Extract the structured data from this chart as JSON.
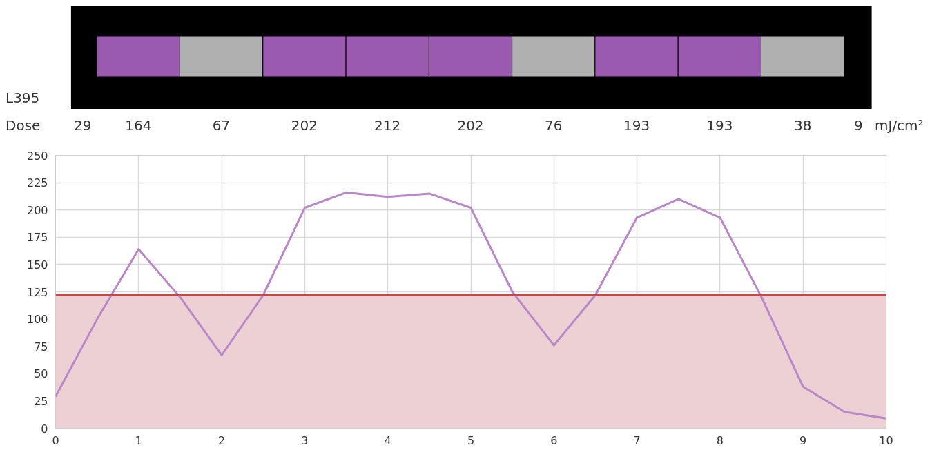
{
  "chart_data": {
    "type": "line",
    "x": [
      0,
      0.5,
      1,
      1.5,
      2,
      2.5,
      3,
      3.5,
      4,
      4.5,
      5,
      5.5,
      6,
      6.5,
      7,
      7.5,
      8,
      8.5,
      9,
      9.5,
      10
    ],
    "series": [
      {
        "color": "#b987c8",
        "values": [
          29,
          100,
          164,
          120,
          67,
          122,
          202,
          216,
          212,
          215,
          202,
          125,
          76,
          122,
          193,
          210,
          193,
          120,
          38,
          15,
          9
        ]
      }
    ],
    "annotations": [
      "L395",
      "Dose",
      "29",
      "164",
      "67",
      "202",
      "212",
      "202",
      "76",
      "193",
      "193",
      "38",
      "9",
      "mJ/cm²"
    ],
    "xlim": [
      0,
      10
    ],
    "xticks": [
      0,
      1,
      2,
      3,
      4,
      5,
      6,
      7,
      8,
      9,
      10
    ],
    "ylim": [
      0,
      250
    ],
    "yticks": [
      0,
      25,
      50,
      75,
      100,
      125,
      150,
      175,
      200,
      225,
      250
    ],
    "grid": true,
    "marker": "none",
    "line_style": "solid",
    "ref_lines": [
      {
        "axis": "y",
        "value": 122,
        "label": null,
        "color": "#cc4444"
      }
    ],
    "bands": [
      {
        "axis": "y",
        "from": 0,
        "to": 122,
        "label": null,
        "color": "#ecd0d4"
      }
    ]
  }
}
